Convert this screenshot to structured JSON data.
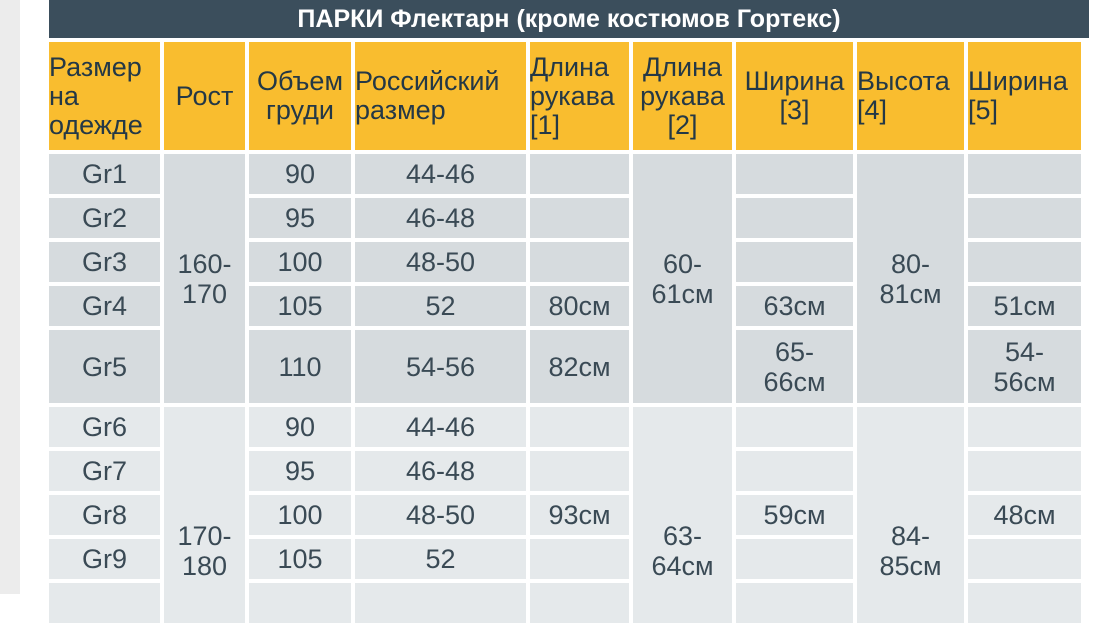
{
  "title": "ПАРКИ Флектарн (кроме костюмов Гортекс)",
  "headers": {
    "size_l1": "Размер",
    "size_l2": "на",
    "size_l3": "одежде",
    "height": "Рост",
    "chest_l1": "Объем",
    "chest_l2": "груди",
    "ru_l1": "Российский",
    "ru_l2": "размер",
    "sleeve1_l1": "Длина",
    "sleeve1_l2": "рукава",
    "sleeve1_l3": "[1]",
    "sleeve2_l1": "Длина",
    "sleeve2_l2": "рукава",
    "sleeve2_l3": "[2]",
    "width3_l1": "Ширина",
    "width3_l2": "[3]",
    "height4_l1": "Высота",
    "height4_l2": "[4]",
    "width5_l1": "Ширина",
    "width5_l2": "[5]"
  },
  "rows": [
    {
      "size": "Gr1",
      "chest": "90",
      "ru": "44-46"
    },
    {
      "size": "Gr2",
      "chest": "95",
      "ru": "46-48"
    },
    {
      "size": "Gr3",
      "chest": "100",
      "ru": "48-50"
    },
    {
      "size": "Gr4",
      "chest": "105",
      "ru": "52"
    },
    {
      "size": "Gr5",
      "chest": "110",
      "ru": "54-56"
    },
    {
      "size": "Gr6",
      "chest": "90",
      "ru": "44-46"
    },
    {
      "size": "Gr7",
      "chest": "95",
      "ru": "46-48"
    },
    {
      "size": "Gr8",
      "chest": "100",
      "ru": "48-50"
    },
    {
      "size": "Gr9",
      "chest": "105",
      "ru": "52"
    }
  ],
  "group1": {
    "height_l1": "160-",
    "height_l2": "170",
    "sleeve2_l1": "60-",
    "sleeve2_l2": "61см",
    "height4_l1": "80-",
    "height4_l2": "81см",
    "gr4_sleeve1": "80см",
    "gr4_width3": "63см",
    "gr4_width5": "51см",
    "gr5_sleeve1": "82см",
    "gr5_width3_l1": "65-",
    "gr5_width3_l2": "66см",
    "gr5_width5_l1": "54-",
    "gr5_width5_l2": "56см"
  },
  "group2": {
    "height_l1": "170-",
    "height_l2": "180",
    "sleeve2_l1": "63-",
    "sleeve2_l2": "64см",
    "height4_l1": "84-",
    "height4_l2": "85см",
    "gr8_sleeve1": "93см",
    "gr8_width3": "59см",
    "gr8_width5": "48см"
  },
  "colors": {
    "title_bg": "#3b4e5c",
    "header_bg": "#f9bd2f",
    "group1_bg": "#d6dbde",
    "group2_bg": "#e5e9eb",
    "text": "#3a4a55"
  }
}
